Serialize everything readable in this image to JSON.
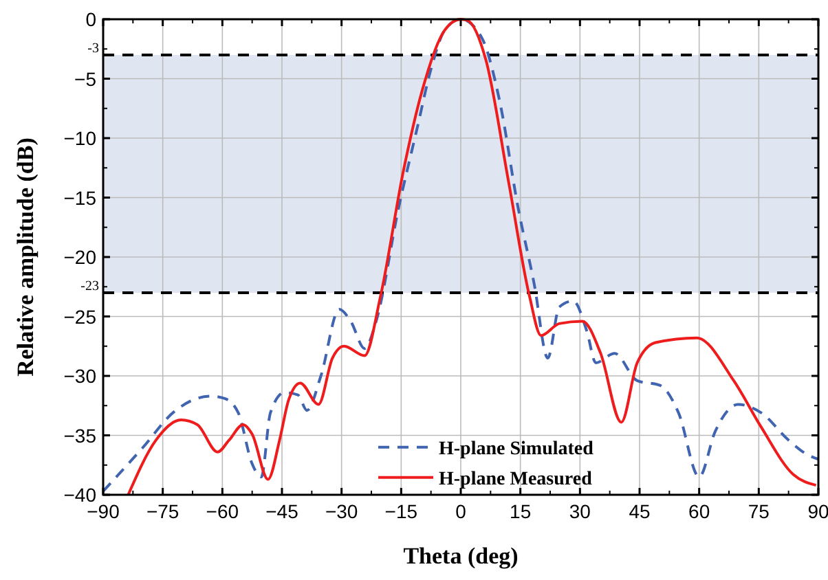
{
  "chart_data": {
    "type": "line",
    "xlabel": "Theta (deg)",
    "ylabel": "Relative amplitude (dB)",
    "xlim": [
      -90,
      90
    ],
    "ylim": [
      -40,
      0
    ],
    "xticks": [
      {
        "value": -90,
        "label": "−90"
      },
      {
        "value": -75,
        "label": "−75"
      },
      {
        "value": -60,
        "label": "−60"
      },
      {
        "value": -45,
        "label": "−45"
      },
      {
        "value": -30,
        "label": "−30"
      },
      {
        "value": -15,
        "label": "−15"
      },
      0,
      15,
      30,
      45,
      60,
      75,
      90
    ],
    "yticks": [
      0,
      {
        "value": -5,
        "label": "−5"
      },
      {
        "value": -10,
        "label": "−10"
      },
      {
        "value": -15,
        "label": "−15"
      },
      {
        "value": -20,
        "label": "−20"
      },
      {
        "value": -25,
        "label": "−25"
      },
      {
        "value": -30,
        "label": "−30"
      },
      {
        "value": -35,
        "label": "−35"
      },
      {
        "value": -40,
        "label": "−40"
      }
    ],
    "grid": true,
    "legend": "bottom",
    "bands": [
      {
        "axis": "y",
        "from": -23,
        "to": -3,
        "color": "#dfe5f1"
      }
    ],
    "ref_lines": [
      {
        "axis": "y",
        "value": -3,
        "label": "-3",
        "color": "#000000",
        "line_style": "dashed"
      },
      {
        "axis": "y",
        "value": -23,
        "label": "-23",
        "color": "#000000",
        "line_style": "dashed"
      }
    ],
    "series": [
      {
        "name": "H-plane Simulated",
        "color": "#4064b0",
        "line_style": "dashed",
        "x": [
          -90,
          -80.2,
          -72.1,
          -62.9,
          -59.4,
          -56,
          -52.5,
          -50.2,
          -47.9,
          -44.4,
          -41,
          -38.7,
          -35.2,
          -30.6,
          -27.7,
          -24.2,
          -21.3,
          -15.6,
          -11,
          -7.5,
          -4,
          0,
          5.2,
          9.8,
          14.4,
          18.5,
          21.9,
          24.8,
          28.3,
          31.7,
          34,
          38.7,
          44.4,
          50.2,
          54.8,
          60,
          64,
          69.8,
          75.6,
          82.5,
          87.1,
          90
        ],
        "values": [
          -39.7,
          -36.1,
          -33,
          -31.7,
          -31.9,
          -33.1,
          -37.4,
          -38.5,
          -33.1,
          -31.4,
          -31.6,
          -32.9,
          -30,
          -24.4,
          -25.4,
          -27.7,
          -25.4,
          -15.8,
          -9.2,
          -4.2,
          -0.9,
          0,
          -1.5,
          -6.9,
          -15.8,
          -22.3,
          -28.5,
          -24.2,
          -23.7,
          -26.2,
          -28.9,
          -28.1,
          -30.4,
          -30.8,
          -33.1,
          -38.5,
          -34.7,
          -32.4,
          -33.1,
          -35.4,
          -36.6,
          -37
        ]
      },
      {
        "name": "H-plane Measured",
        "color": "#ee1c1c",
        "line_style": "solid",
        "x": [
          -83.7,
          -76.7,
          -70.4,
          -66.3,
          -61.2,
          -58.3,
          -54.8,
          -52.5,
          -48.5,
          -45.6,
          -43.3,
          -40.4,
          -35.8,
          -32.3,
          -29.4,
          -24.2,
          -20.2,
          -14.4,
          -9.8,
          -4,
          0,
          1.7,
          6.3,
          12.1,
          17.3,
          20.2,
          24.8,
          30.6,
          35.2,
          40.4,
          44.4,
          49,
          59.4,
          68.7,
          75.6,
          83.7,
          89.4
        ],
        "values": [
          -40,
          -35.4,
          -33.7,
          -34.1,
          -36.4,
          -35.4,
          -34.1,
          -34.9,
          -38.7,
          -35.4,
          -32,
          -30.6,
          -32.4,
          -28.5,
          -27.5,
          -28.3,
          -23.3,
          -12.7,
          -6.1,
          -0.9,
          0,
          -0.1,
          -3.4,
          -13.8,
          -23.3,
          -26.6,
          -25.6,
          -25.4,
          -28.1,
          -33.9,
          -28.9,
          -27.2,
          -26.8,
          -30.4,
          -34.3,
          -38.3,
          -39.2
        ]
      }
    ]
  }
}
